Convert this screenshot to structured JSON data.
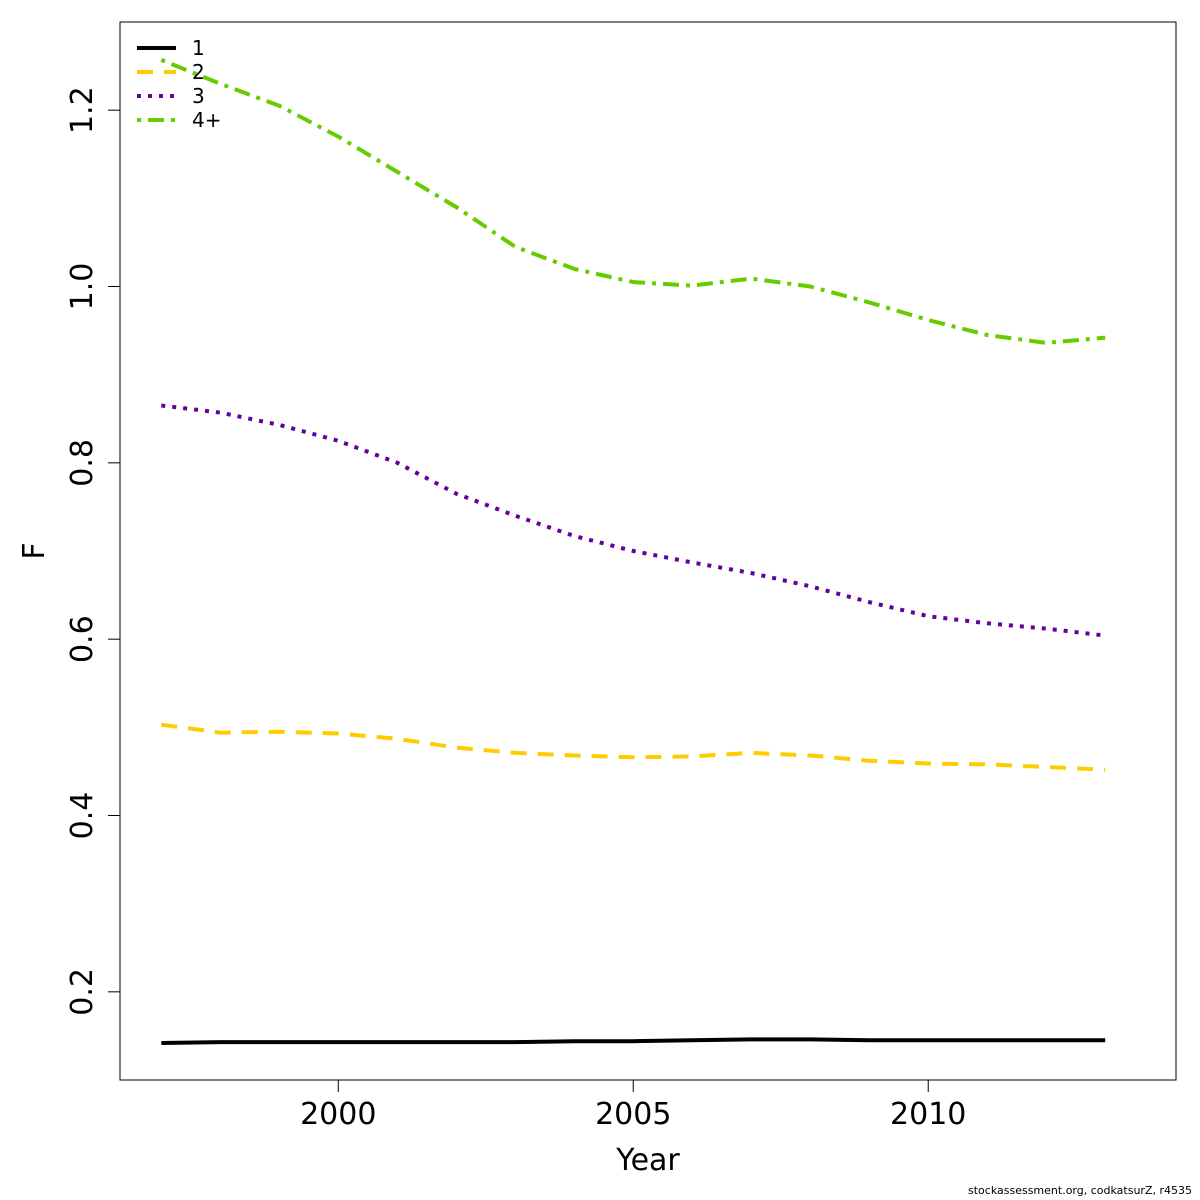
{
  "chart_data": {
    "type": "line",
    "title": "",
    "xlabel": "Year",
    "ylabel": "F",
    "xlim": [
      1996.3,
      2014.2
    ],
    "ylim": [
      0.1,
      1.3
    ],
    "x_ticks": [
      2000,
      2005,
      2010
    ],
    "y_ticks": [
      0.2,
      0.4,
      0.6,
      0.8,
      1.0,
      1.2
    ],
    "y_tick_labels": [
      "0.2",
      "0.4",
      "0.6",
      "0.8",
      "1.0",
      "1.2"
    ],
    "legend_position": "top-left",
    "grid": false,
    "x": [
      1997,
      1998,
      1999,
      2000,
      2001,
      2002,
      2003,
      2004,
      2005,
      2006,
      2007,
      2008,
      2009,
      2010,
      2011,
      2012,
      2013
    ],
    "series": [
      {
        "name": "1",
        "color": "#000000",
        "dash": "solid",
        "values": [
          0.142,
          0.143,
          0.143,
          0.143,
          0.143,
          0.143,
          0.143,
          0.144,
          0.144,
          0.145,
          0.146,
          0.146,
          0.145,
          0.145,
          0.145,
          0.145,
          0.145
        ]
      },
      {
        "name": "2",
        "color": "#ffcc00",
        "dash": "dashed",
        "values": [
          0.503,
          0.494,
          0.495,
          0.493,
          0.487,
          0.477,
          0.471,
          0.468,
          0.466,
          0.467,
          0.471,
          0.468,
          0.462,
          0.459,
          0.458,
          0.455,
          0.452
        ]
      },
      {
        "name": "3",
        "color": "#660099",
        "dash": "dotted",
        "values": [
          0.865,
          0.857,
          0.843,
          0.825,
          0.8,
          0.765,
          0.74,
          0.717,
          0.7,
          0.687,
          0.675,
          0.66,
          0.642,
          0.626,
          0.618,
          0.612,
          0.604
        ]
      },
      {
        "name": "4+",
        "color": "#66cc00",
        "dash": "dotdash",
        "values": [
          1.257,
          1.23,
          1.205,
          1.17,
          1.13,
          1.09,
          1.045,
          1.02,
          1.005,
          1.001,
          1.009,
          1.0,
          0.982,
          0.962,
          0.945,
          0.936,
          0.942
        ]
      }
    ]
  },
  "footer": {
    "credit": "stockassessment.org, codkatsurZ, r4535"
  }
}
